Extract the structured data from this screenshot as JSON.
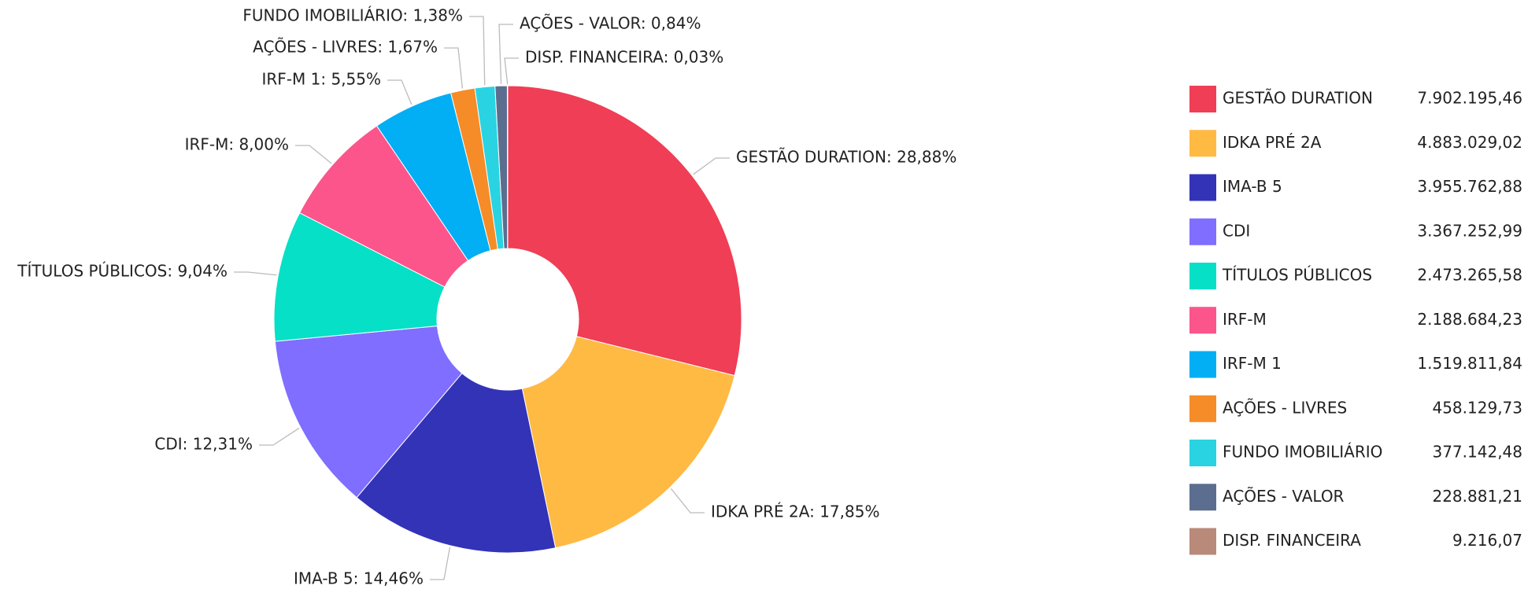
{
  "chart_data": {
    "type": "pie",
    "categories": [
      "GESTÃO DURATION",
      "IDKA PRÉ 2A",
      "IMA-B 5",
      "CDI",
      "TÍTULOS PÚBLICOS",
      "IRF-M",
      "IRF-M 1",
      "AÇÕES - LIVRES",
      "FUNDO IMOBILIÁRIO",
      "AÇÕES - VALOR",
      "DISP. FINANCEIRA"
    ],
    "percentages": [
      28.88,
      17.85,
      14.46,
      12.31,
      9.04,
      8.0,
      5.55,
      1.67,
      1.38,
      0.84,
      0.03
    ],
    "slice_labels": [
      "GESTÃO DURATION: 28,88%",
      "IDKA PRÉ 2A: 17,85%",
      "IMA-B 5: 14,46%",
      "CDI: 12,31%",
      "TÍTULOS PÚBLICOS: 9,04%",
      "IRF-M: 8,00%",
      "IRF-M 1: 5,55%",
      "AÇÕES - LIVRES: 1,67%",
      "FUNDO IMOBILIÁRIO: 1,38%",
      "AÇÕES - VALOR: 0,84%",
      "DISP. FINANCEIRA: 0,03%"
    ],
    "values": [
      7902195.46,
      4883029.02,
      3955762.88,
      3367252.99,
      2473265.58,
      2188684.23,
      1519811.84,
      458129.73,
      377142.48,
      228881.21,
      9216.07
    ],
    "value_labels": [
      "7.902.195,46",
      "4.883.029,02",
      "3.955.762,88",
      "3.367.252,99",
      "2.473.265,58",
      "2.188.684,23",
      "1.519.811,84",
      "458.129,73",
      "377.142,48",
      "228.881,21",
      "9.216,07"
    ],
    "colors": [
      "#ef3e55",
      "#ffba44",
      "#3333b8",
      "#7f6eff",
      "#06e0c6",
      "#fb558c",
      "#02aef4",
      "#f58c27",
      "#29d3e2",
      "#5c6e8f",
      "#b98a7a"
    ],
    "legend": "right"
  }
}
